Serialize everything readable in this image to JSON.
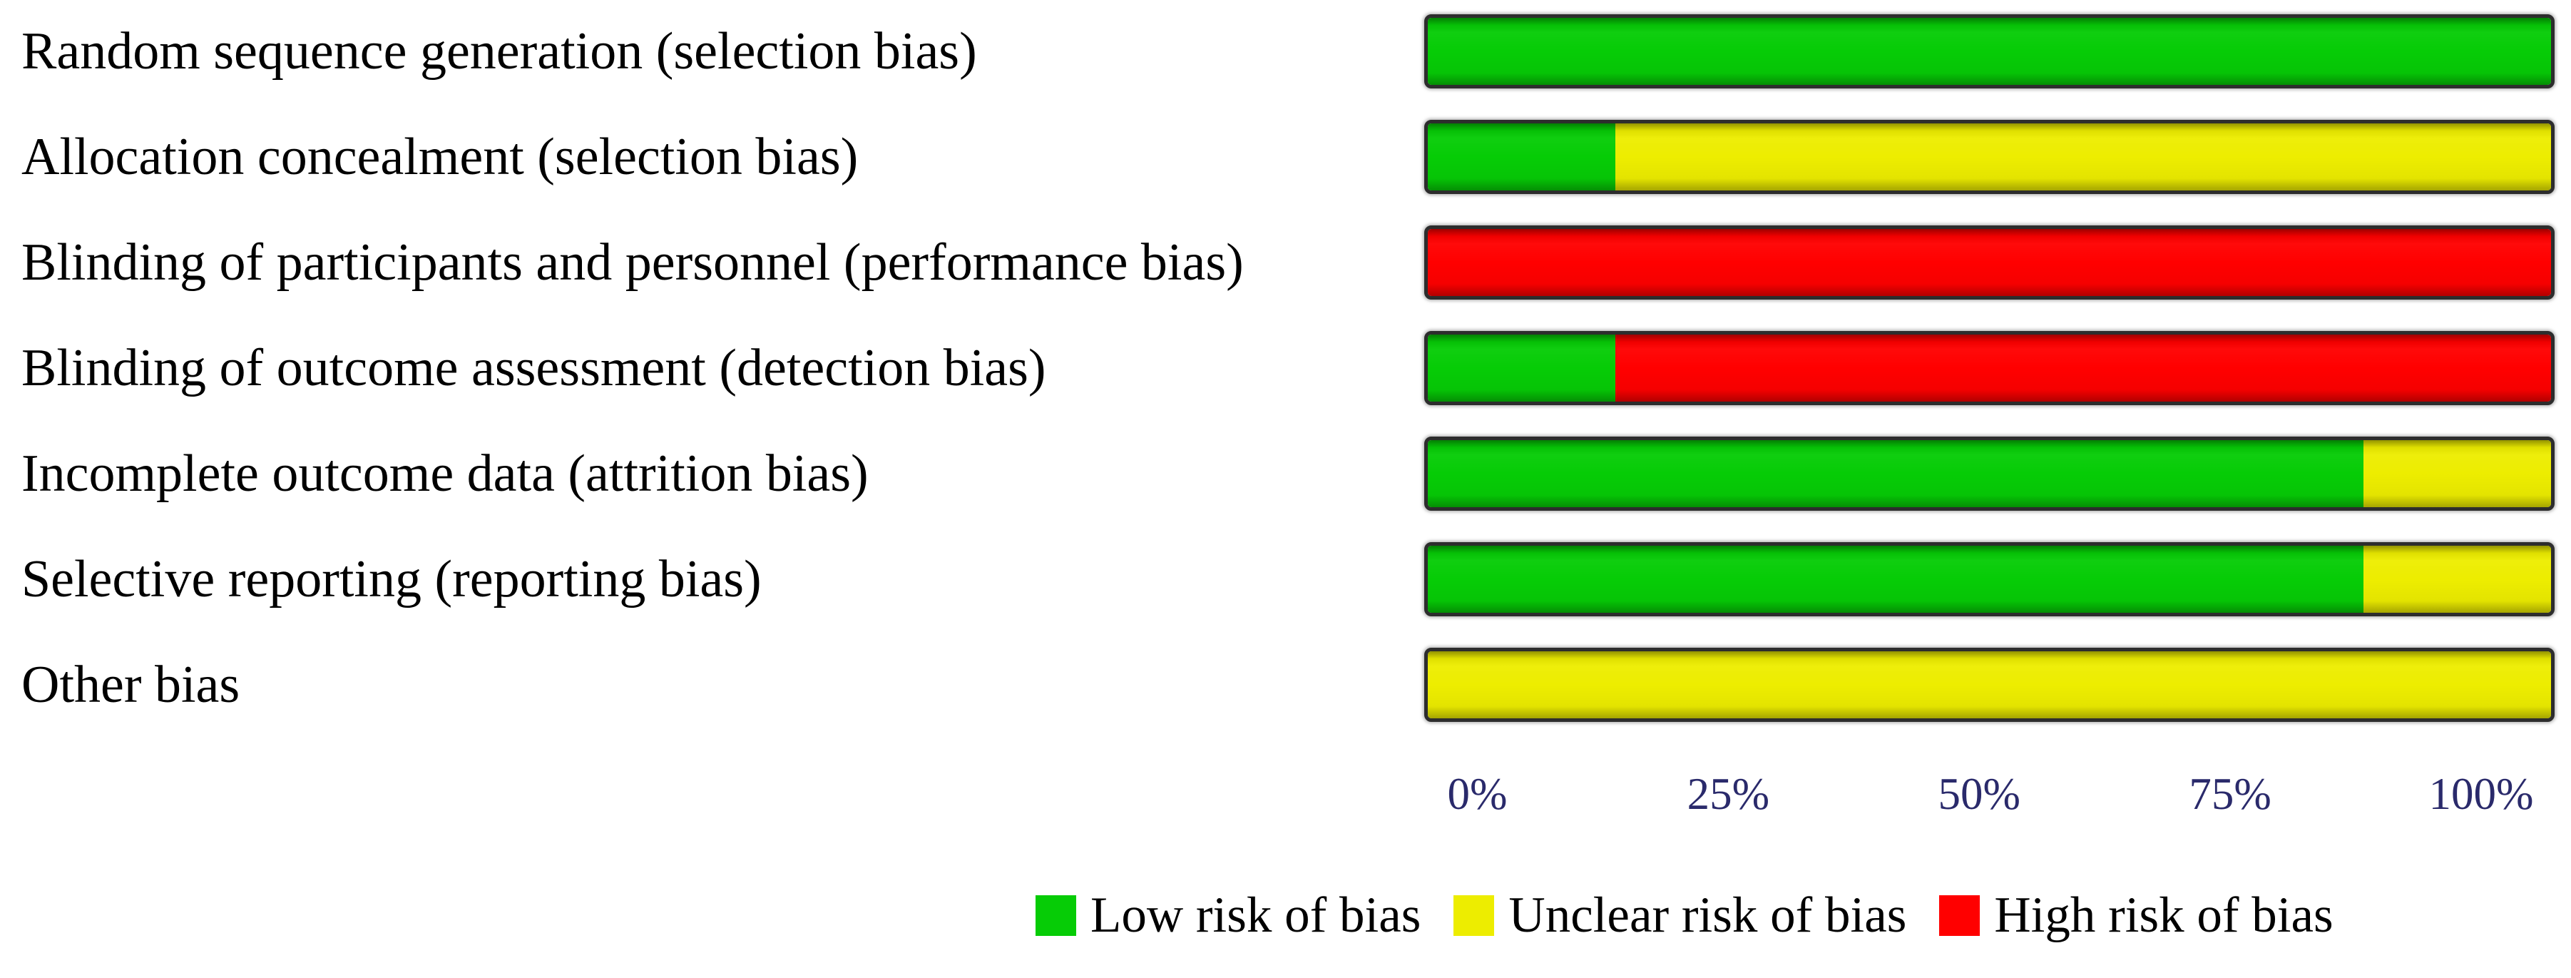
{
  "chart_data": {
    "type": "bar",
    "subtype": "horizontal-stacked-percentage",
    "title": "",
    "xlabel": "",
    "ylabel": "",
    "grid": false,
    "categories": [
      "Random sequence generation (selection bias)",
      "Allocation concealment (selection bias)",
      "Blinding of participants and personnel (performance bias)",
      "Blinding of outcome assessment (detection bias)",
      "Incomplete outcome data (attrition bias)",
      "Selective reporting (reporting bias)",
      "Other bias"
    ],
    "series": [
      {
        "id": "low",
        "name": "Low risk of bias",
        "color": "#06CC06",
        "values": [
          100,
          16.7,
          0,
          16.7,
          83.3,
          83.3,
          0
        ]
      },
      {
        "id": "unclear",
        "name": "Unclear risk of bias",
        "color": "#EDED00",
        "values": [
          0,
          83.3,
          0,
          0,
          16.7,
          16.7,
          100
        ]
      },
      {
        "id": "high",
        "name": "High risk of bias",
        "color": "#FF0000",
        "values": [
          0,
          0,
          100,
          83.3,
          0,
          0,
          0
        ]
      }
    ],
    "x_axis": {
      "range": [
        0,
        100
      ],
      "ticks": [
        "0%",
        "25%",
        "50%",
        "75%",
        "100%"
      ]
    },
    "legend": {
      "position": "bottom",
      "items": [
        {
          "id": "low",
          "label": "Low risk of bias",
          "color": "#06CC06"
        },
        {
          "id": "unclear",
          "label": "Unclear risk of bias",
          "color": "#EDED00"
        },
        {
          "id": "high",
          "label": "High risk of bias",
          "color": "#FF0000"
        }
      ]
    }
  }
}
